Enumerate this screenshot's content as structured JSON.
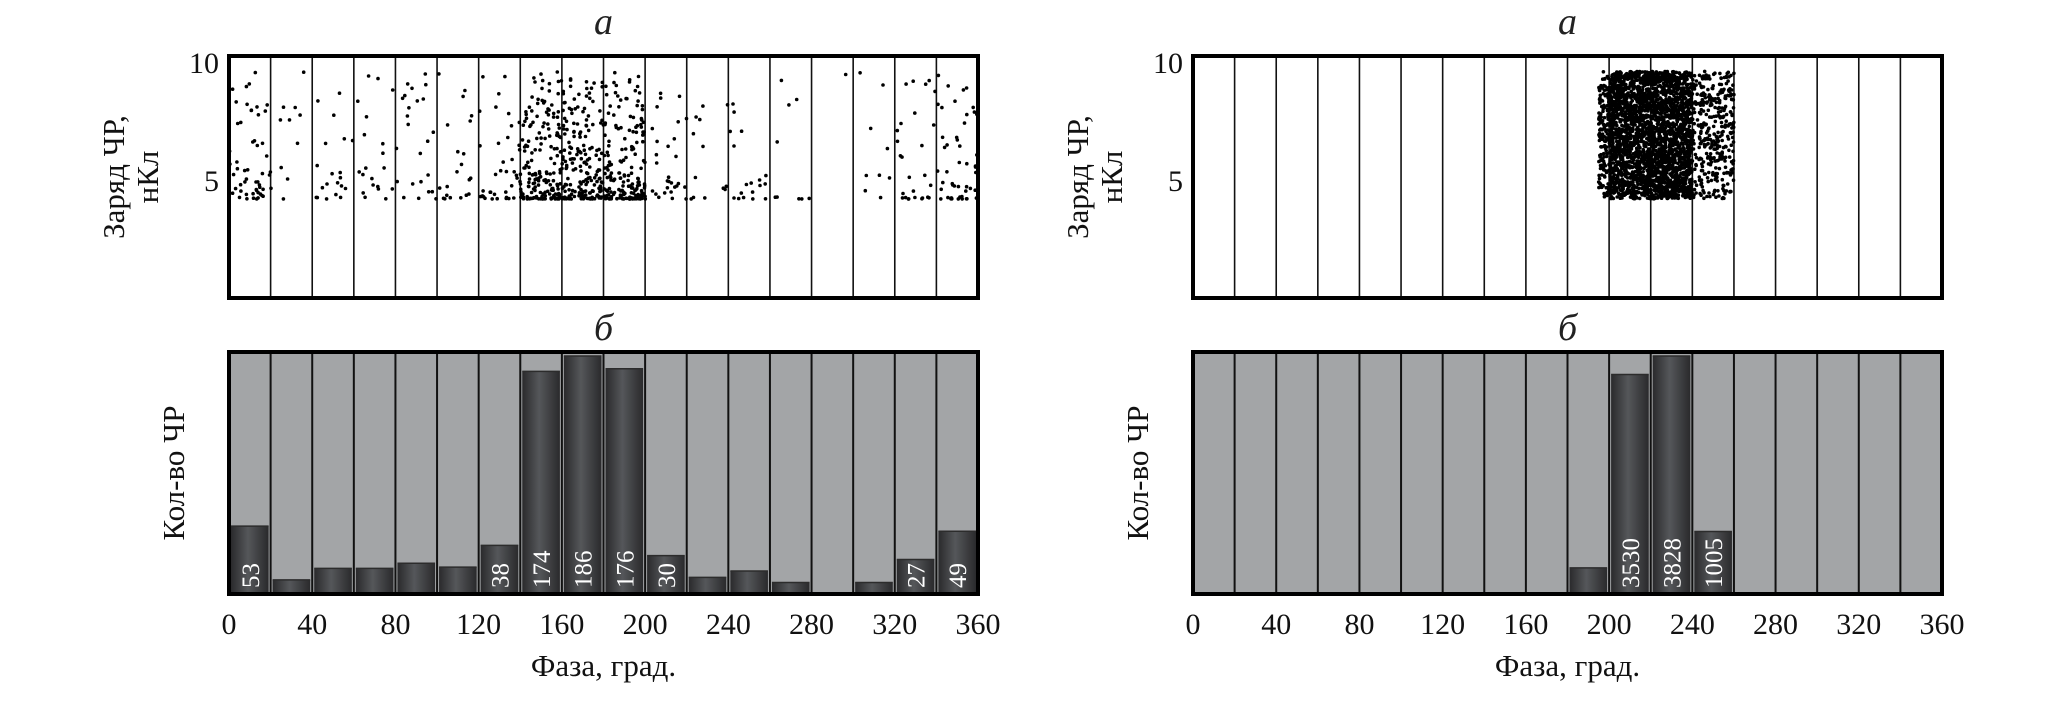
{
  "chart_data": [
    {
      "panel": "left",
      "charts": [
        {
          "type": "scatter",
          "title": "а",
          "ylabel": [
            "Заряд ЧР,",
            "нКл"
          ],
          "xlim": [
            0,
            360
          ],
          "ylim": [
            0,
            10
          ],
          "yticks": [
            "5",
            "10"
          ],
          "bin_width": 20,
          "point_range_y": [
            4.2,
            9.6
          ],
          "points_per_bin": [
            53,
            11,
            20,
            20,
            24,
            21,
            38,
            174,
            186,
            176,
            30,
            13,
            18,
            9,
            1,
            9,
            27,
            49
          ],
          "color": "#000000"
        },
        {
          "type": "bar",
          "title": "б",
          "ylabel": "Кол-во ЧР",
          "xlabel": "Фаза, град.",
          "xticks": [
            "0",
            "40",
            "80",
            "120",
            "160",
            "200",
            "240",
            "280",
            "320",
            "360"
          ],
          "categories": [
            "0-20",
            "20-40",
            "40-60",
            "60-80",
            "80-100",
            "100-120",
            "120-140",
            "140-160",
            "160-180",
            "180-200",
            "200-220",
            "220-240",
            "240-260",
            "260-280",
            "280-300",
            "300-320",
            "320-340",
            "340-360"
          ],
          "values": [
            53,
            11,
            20,
            20,
            24,
            21,
            38,
            174,
            186,
            176,
            30,
            13,
            18,
            9,
            1,
            9,
            27,
            49
          ],
          "labels": [
            "53",
            "",
            "",
            "",
            "",
            "",
            "38",
            "174",
            "186",
            "176",
            "30",
            "",
            "",
            "",
            "",
            "",
            "27",
            "49"
          ],
          "bar_color": "#3c3c3e",
          "background_color": "#a3a5a7"
        }
      ]
    },
    {
      "panel": "right",
      "charts": [
        {
          "type": "scatter",
          "title": "а",
          "ylabel": [
            "Заряд ЧР,",
            "нКл"
          ],
          "xlim": [
            0,
            360
          ],
          "ylim": [
            0,
            10
          ],
          "yticks": [
            "5",
            "10"
          ],
          "bin_width": 20,
          "point_range_y": [
            4.2,
            9.6
          ],
          "point_range_x": [
            195,
            262
          ],
          "points_per_bin": [
            0,
            0,
            0,
            0,
            0,
            0,
            0,
            0,
            0,
            421,
            3530,
            3828,
            1005,
            0,
            0,
            0,
            0,
            0
          ],
          "color": "#000000"
        },
        {
          "type": "bar",
          "title": "б",
          "ylabel": "Кол-во ЧР",
          "xlabel": "Фаза, град.",
          "xticks": [
            "0",
            "40",
            "80",
            "120",
            "160",
            "200",
            "240",
            "280",
            "320",
            "360"
          ],
          "categories": [
            "0-20",
            "20-40",
            "40-60",
            "60-80",
            "80-100",
            "100-120",
            "120-140",
            "140-160",
            "160-180",
            "180-200",
            "200-220",
            "220-240",
            "240-260",
            "260-280",
            "280-300",
            "300-320",
            "320-340",
            "340-360"
          ],
          "values": [
            0,
            0,
            0,
            0,
            0,
            0,
            0,
            0,
            0,
            421,
            3530,
            3828,
            1005,
            0,
            0,
            0,
            0,
            0
          ],
          "labels": [
            "",
            "",
            "",
            "",
            "",
            "",
            "",
            "",
            "",
            "",
            "3530",
            "3828",
            "1005",
            "",
            "",
            "",
            "",
            ""
          ],
          "bar_color": "#3c3c3e",
          "background_color": "#a3a5a7"
        }
      ]
    }
  ]
}
